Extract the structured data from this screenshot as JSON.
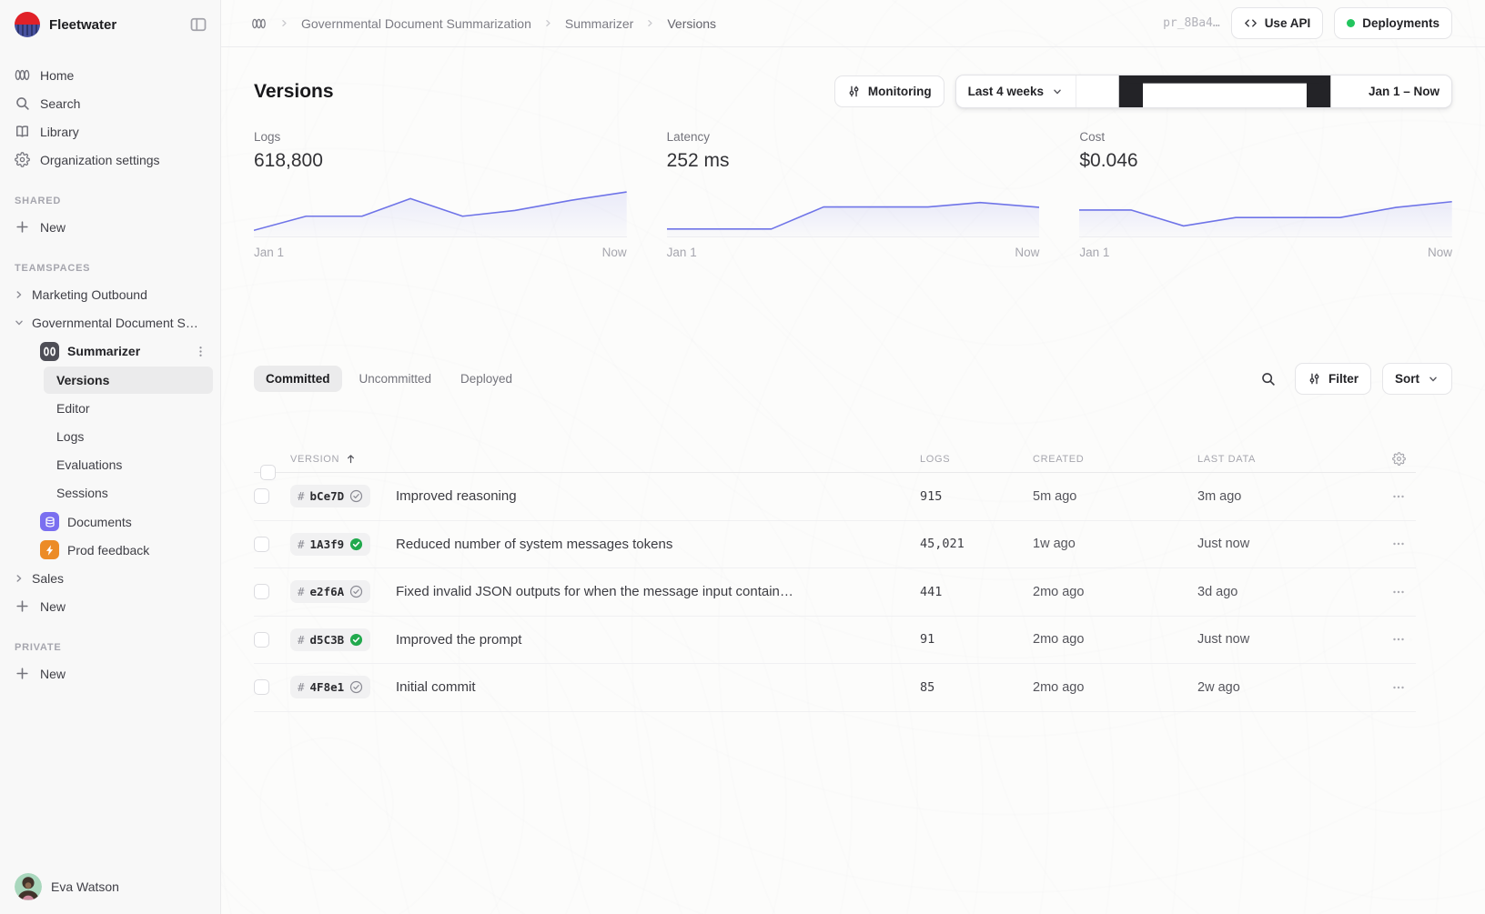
{
  "brand": {
    "name": "Fleetwater"
  },
  "sidebar": {
    "nav": [
      {
        "label": "Home",
        "icon": "logo-mark"
      },
      {
        "label": "Search",
        "icon": "search"
      },
      {
        "label": "Library",
        "icon": "book"
      },
      {
        "label": "Organization settings",
        "icon": "gear"
      }
    ],
    "sections": {
      "shared": "SHARED",
      "teamspaces": "TEAMSPACES",
      "private": "PRIVATE"
    },
    "new_label": "New",
    "teamspaces": {
      "marketing": "Marketing Outbound",
      "governmental": "Governmental Document S…",
      "sales": "Sales"
    },
    "project": {
      "name": "Summarizer",
      "pages": [
        {
          "label": "Versions",
          "active": true
        },
        {
          "label": "Editor",
          "active": false
        },
        {
          "label": "Logs",
          "active": false
        },
        {
          "label": "Evaluations",
          "active": false
        },
        {
          "label": "Sessions",
          "active": false
        }
      ],
      "files": [
        {
          "label": "Documents",
          "icon": "database",
          "color": "#7a6ff0"
        },
        {
          "label": "Prod feedback",
          "icon": "bolt",
          "color": "#ec8b26"
        }
      ]
    },
    "user": {
      "name": "Eva Watson"
    }
  },
  "topbar": {
    "breadcrumb": {
      "project": "Governmental Document Summarization",
      "file": "Summarizer",
      "page": "Versions"
    },
    "env_id": "pr_8Ba4…",
    "use_api": "Use API",
    "deployments": "Deployments",
    "deployment_status_color": "#22c55e"
  },
  "page": {
    "title": "Versions",
    "monitoring": "Monitoring",
    "range": "Last 4 weeks",
    "dates": "Jan 1 – Now"
  },
  "accent": {
    "spark_line": "#6f74e8"
  },
  "stats": [
    {
      "label": "Logs",
      "value": "618,800",
      "x_start": "Jan 1",
      "x_end": "Now",
      "spark": [
        [
          0,
          0.1
        ],
        [
          0.14,
          0.42
        ],
        [
          0.29,
          0.42
        ],
        [
          0.42,
          0.82
        ],
        [
          0.56,
          0.42
        ],
        [
          0.7,
          0.55
        ],
        [
          0.85,
          0.78
        ],
        [
          1,
          0.97
        ]
      ]
    },
    {
      "label": "Latency",
      "value": "252 ms",
      "x_start": "Jan 1",
      "x_end": "Now",
      "spark": [
        [
          0,
          0.13
        ],
        [
          0.28,
          0.13
        ],
        [
          0.42,
          0.63
        ],
        [
          0.7,
          0.63
        ],
        [
          0.84,
          0.73
        ],
        [
          1,
          0.62
        ]
      ]
    },
    {
      "label": "Cost",
      "value": "$0.046",
      "x_start": "Jan 1",
      "x_end": "Now",
      "spark": [
        [
          0,
          0.56
        ],
        [
          0.14,
          0.56
        ],
        [
          0.28,
          0.2
        ],
        [
          0.42,
          0.39
        ],
        [
          0.7,
          0.39
        ],
        [
          0.85,
          0.62
        ],
        [
          1,
          0.75
        ]
      ]
    }
  ],
  "chart_data": [
    {
      "type": "area",
      "title": "Logs",
      "value_label": "618,800",
      "x_tick_labels": [
        "Jan 1",
        "Now"
      ],
      "series": [
        {
          "name": "Logs",
          "values_normalized": [
            0.1,
            0.42,
            0.42,
            0.82,
            0.42,
            0.55,
            0.78,
            0.97
          ]
        }
      ],
      "note": "unlabeled sparkline; y values estimated as fraction of plot height"
    },
    {
      "type": "area",
      "title": "Latency",
      "value_label": "252 ms",
      "x_tick_labels": [
        "Jan 1",
        "Now"
      ],
      "series": [
        {
          "name": "Latency",
          "values_normalized": [
            0.13,
            0.13,
            0.63,
            0.63,
            0.73,
            0.62
          ]
        }
      ],
      "note": "unlabeled sparkline; y values estimated as fraction of plot height"
    },
    {
      "type": "area",
      "title": "Cost",
      "value_label": "$0.046",
      "x_tick_labels": [
        "Jan 1",
        "Now"
      ],
      "series": [
        {
          "name": "Cost",
          "values_normalized": [
            0.56,
            0.56,
            0.2,
            0.39,
            0.39,
            0.62,
            0.75
          ]
        }
      ],
      "note": "unlabeled sparkline; y values estimated as fraction of plot height"
    }
  ],
  "tabs": [
    {
      "label": "Committed",
      "active": true
    },
    {
      "label": "Uncommitted",
      "active": false
    },
    {
      "label": "Deployed",
      "active": false
    }
  ],
  "toolbar": {
    "filter": "Filter",
    "sort": "Sort"
  },
  "table": {
    "columns": {
      "version": "VERSION",
      "logs": "LOGS",
      "created": "CREATED",
      "last_data": "LAST DATA"
    },
    "rows": [
      {
        "id": "bCe7D",
        "verified": false,
        "message": "Improved reasoning",
        "logs": "915",
        "created": "5m ago",
        "last_data": "3m ago"
      },
      {
        "id": "1A3f9",
        "verified": true,
        "message": "Reduced number of system messages tokens",
        "logs": "45,021",
        "created": "1w ago",
        "last_data": "Just now"
      },
      {
        "id": "e2f6A",
        "verified": false,
        "message": "Fixed invalid JSON outputs for when the message input contain…",
        "logs": "441",
        "created": "2mo ago",
        "last_data": "3d ago"
      },
      {
        "id": "d5C3B",
        "verified": true,
        "message": "Improved the prompt",
        "logs": "91",
        "created": "2mo ago",
        "last_data": "Just now"
      },
      {
        "id": "4F8e1",
        "verified": false,
        "message": "Initial commit",
        "logs": "85",
        "created": "2mo ago",
        "last_data": "2w ago"
      }
    ]
  }
}
